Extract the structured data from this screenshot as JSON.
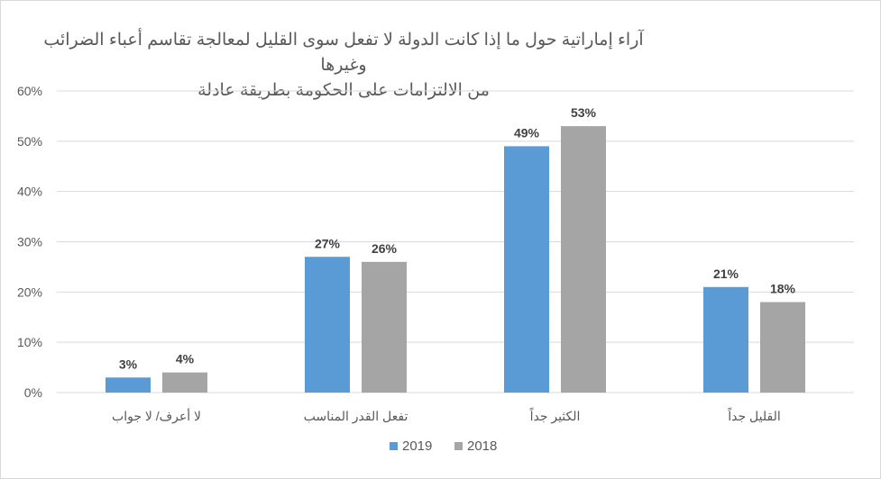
{
  "chart_data": {
    "type": "bar",
    "title_line1": "آراء إماراتية حول ما إذا كانت الدولة لا تفعل سوى القليل لمعالجة تقاسم أعباء الضرائب وغيرها",
    "title_line2": "من الالتزامات على الحكومة بطريقة عادلة",
    "categories": [
      "لا أعرف/ لا جواب",
      "تفعل القدر المناسب",
      "الكثير جداً",
      "القليل جداً"
    ],
    "series": [
      {
        "name": "2019",
        "values": [
          3,
          27,
          49,
          21
        ],
        "color": "#5b9bd5"
      },
      {
        "name": "2018",
        "values": [
          4,
          26,
          53,
          18
        ],
        "color": "#a5a5a5"
      }
    ],
    "data_labels": [
      [
        "3%",
        "27%",
        "49%",
        "21%"
      ],
      [
        "4%",
        "26%",
        "53%",
        "18%"
      ]
    ],
    "yticks": [
      "0%",
      "10%",
      "20%",
      "30%",
      "40%",
      "50%",
      "60%"
    ],
    "ylim": [
      0,
      60
    ],
    "grid": true,
    "legend_position": "bottom"
  }
}
